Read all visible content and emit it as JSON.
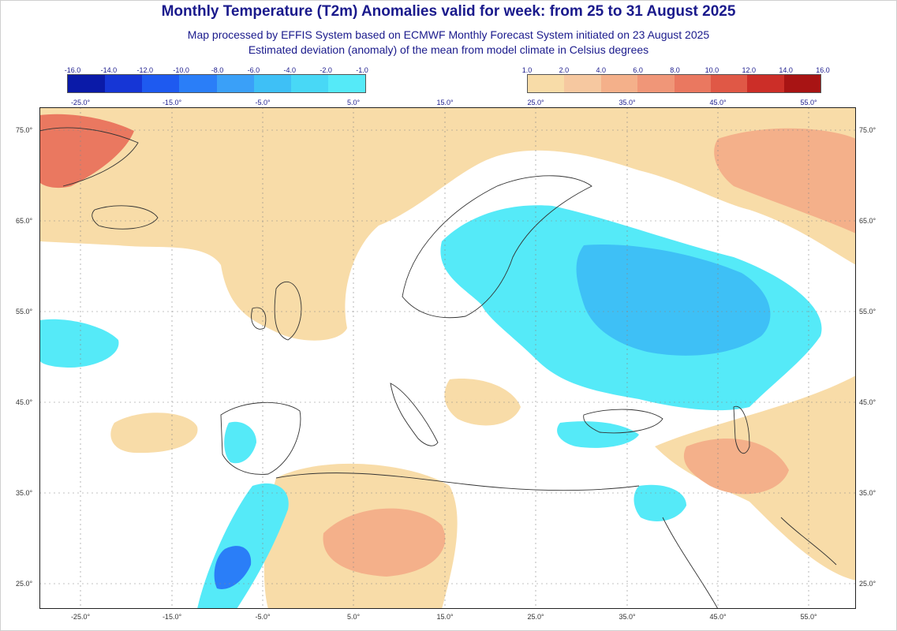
{
  "header": {
    "title": "Monthly Temperature (T2m) Anomalies valid for week: from 25 to 31 August 2025",
    "subtitle1": "Map processed by EFFIS System based on ECMWF Monthly Forecast System initiated on 23 August 2025",
    "subtitle2": "Estimated deviation (anomaly) of the mean from model climate in Celsius degrees"
  },
  "legend": {
    "cold": {
      "labels": [
        "-16.0",
        "-14.0",
        "-12.0",
        "-10.0",
        "-8.0",
        "-6.0",
        "-4.0",
        "-2.0",
        "-1.0"
      ],
      "colors": [
        "#0a1aa8",
        "#1636d6",
        "#1e5af0",
        "#2a7ef8",
        "#3aa0f8",
        "#3ec0f6",
        "#48d8f6",
        "#55eaf8"
      ]
    },
    "warm": {
      "labels": [
        "1.0",
        "2.0",
        "4.0",
        "6.0",
        "8.0",
        "10.0",
        "12.0",
        "14.0",
        "16.0"
      ],
      "colors": [
        "#f8dca8",
        "#f6c8a0",
        "#f4b08a",
        "#f09678",
        "#ea7860",
        "#e05846",
        "#cc2e28",
        "#a81414"
      ]
    }
  },
  "axes": {
    "lon_labels": [
      "-25.0°",
      "-15.0°",
      "-5.0°",
      "5.0°",
      "15.0°",
      "25.0°",
      "35.0°",
      "45.0°",
      "55.0°"
    ],
    "lat_labels": [
      "75.0°",
      "65.0°",
      "55.0°",
      "45.0°",
      "35.0°",
      "25.0°"
    ]
  },
  "colors": {
    "title": "#1a1a8c",
    "warm_light": "#f8dca8",
    "warm_mid": "#f4b08a",
    "warm_strong": "#ea7860",
    "cold_light": "#55eaf8",
    "cold_mid": "#3ec0f6",
    "cold_strong": "#2a7ef8"
  }
}
